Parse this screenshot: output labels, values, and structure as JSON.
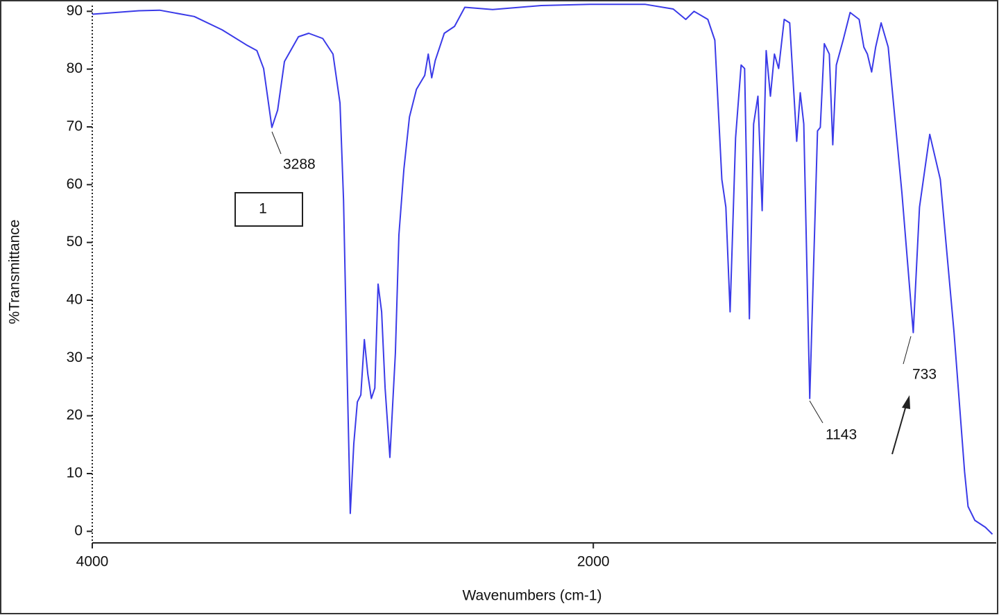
{
  "chart_data": {
    "type": "line",
    "xlabel": "Wavenumbers (cm-1)",
    "ylabel": "%Transmittance",
    "x": [
      4000,
      3814,
      3731,
      3593,
      3482,
      3385,
      3343,
      3316,
      3283,
      3260,
      3233,
      3177,
      3136,
      3080,
      3039,
      3011,
      2997,
      2983,
      2970,
      2956,
      2942,
      2928,
      2914,
      2900,
      2886,
      2872,
      2859,
      2845,
      2831,
      2812,
      2790,
      2776,
      2756,
      2734,
      2706,
      2673,
      2659,
      2645,
      2631,
      2595,
      2554,
      2513,
      2402,
      2208,
      2014,
      1792,
      1681,
      1631,
      1598,
      1543,
      1515,
      1487,
      1471,
      1454,
      1432,
      1410,
      1396,
      1377,
      1360,
      1343,
      1326,
      1310,
      1293,
      1277,
      1260,
      1238,
      1216,
      1188,
      1174,
      1160,
      1136,
      1105,
      1094,
      1078,
      1058,
      1044,
      1030,
      1003,
      975,
      939,
      920,
      906,
      889,
      873,
      851,
      823,
      768,
      723,
      698,
      657,
      615,
      560,
      518,
      504,
      477,
      435,
      407
    ],
    "values": [
      89.5,
      90.1,
      90.2,
      89.1,
      86.8,
      84.2,
      83.2,
      80.1,
      69.9,
      72.9,
      81.3,
      85.6,
      86.2,
      85.3,
      82.6,
      74.1,
      57.3,
      28.4,
      3.1,
      15.2,
      22.4,
      23.6,
      33.2,
      27.2,
      23.0,
      24.8,
      42.8,
      38.0,
      24.8,
      12.8,
      30.8,
      51.3,
      62.7,
      71.7,
      76.5,
      78.9,
      82.6,
      78.5,
      81.5,
      86.2,
      87.4,
      90.7,
      90.3,
      91.0,
      91.2,
      91.2,
      90.4,
      88.6,
      90.0,
      88.6,
      85.0,
      60.9,
      56.1,
      38.0,
      68.1,
      80.7,
      80.1,
      36.8,
      70.5,
      75.3,
      55.5,
      83.2,
      75.3,
      82.6,
      80.1,
      88.6,
      88.0,
      67.5,
      75.9,
      70.5,
      23.0,
      69.3,
      69.9,
      84.4,
      82.6,
      66.9,
      80.7,
      85.0,
      89.8,
      88.6,
      83.8,
      82.6,
      79.5,
      83.8,
      88.0,
      83.8,
      58.5,
      34.4,
      56.1,
      68.7,
      60.9,
      34.4,
      10.3,
      4.3,
      1.9,
      0.7,
      -0.5
    ],
    "color": "#3a3ae8",
    "xlim": [
      4000,
      400
    ],
    "xticks": [
      4000,
      2000
    ],
    "ylim": [
      -2,
      91
    ],
    "yticks": [
      0,
      10,
      20,
      30,
      40,
      50,
      60,
      70,
      80,
      90
    ],
    "annotations": [
      "3288",
      "1143",
      "733"
    ],
    "label_box": "1"
  }
}
